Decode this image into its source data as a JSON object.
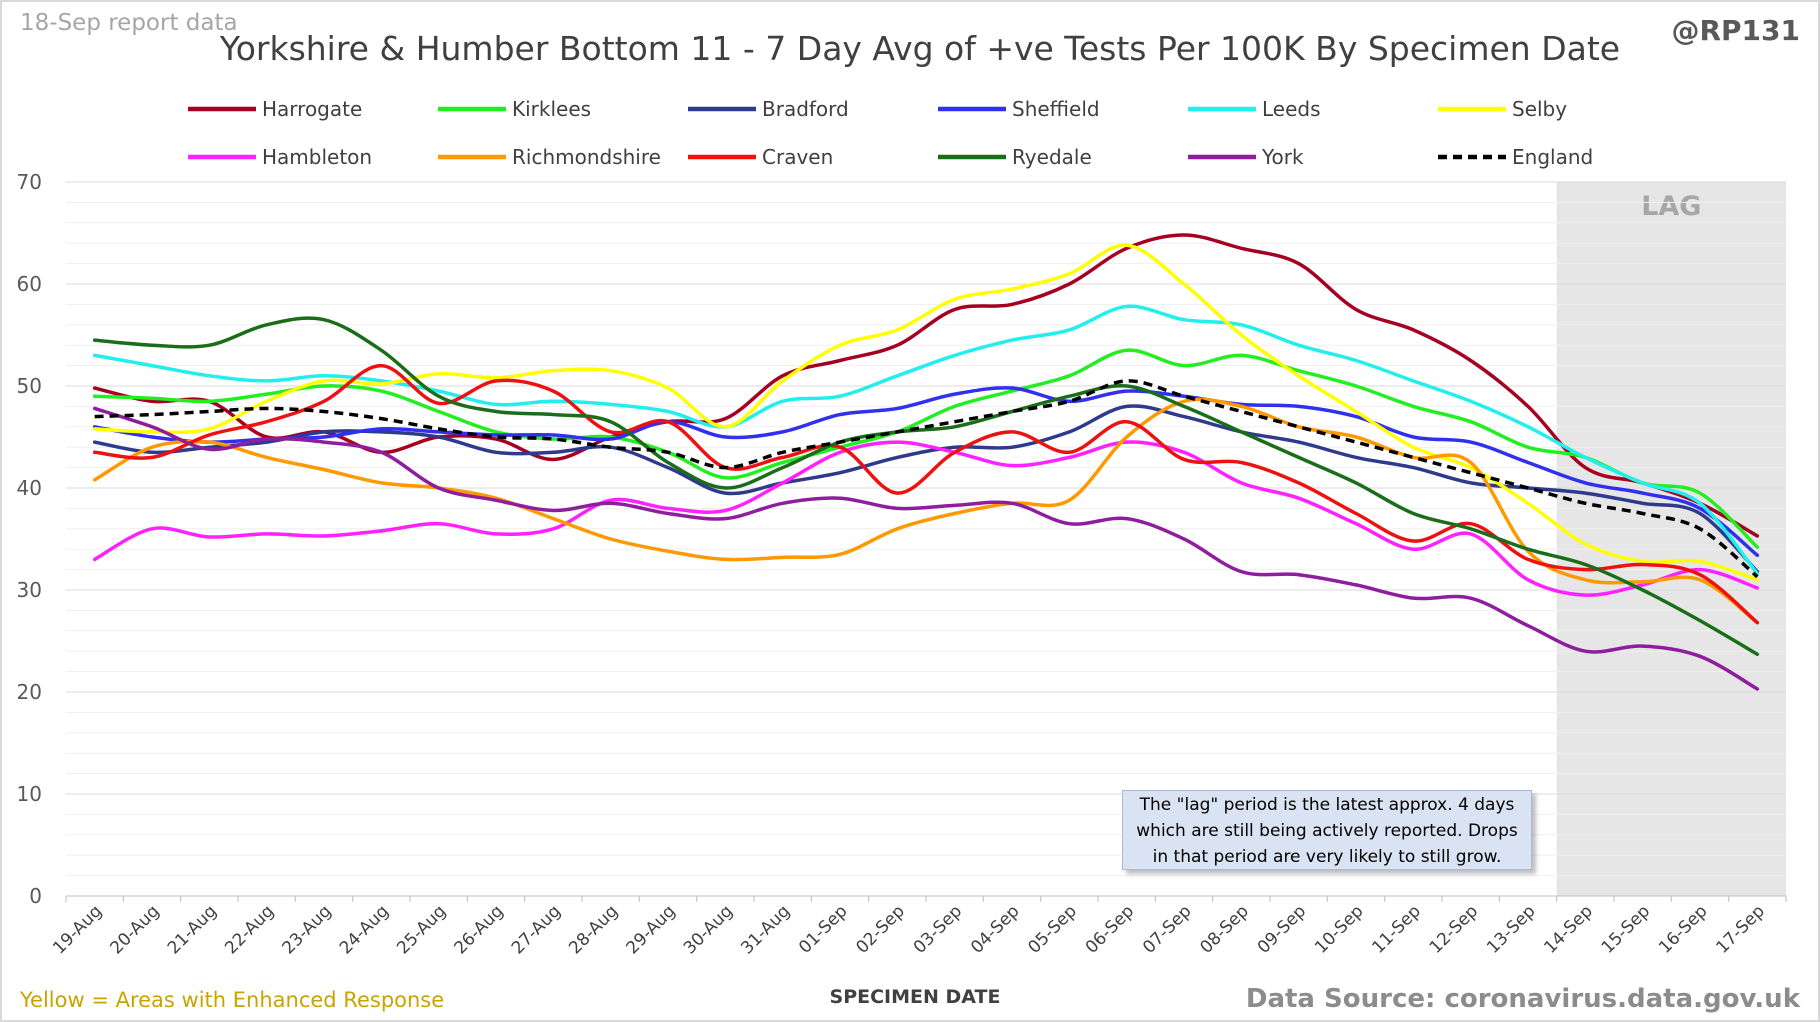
{
  "header": {
    "report_date": "18-Sep report data",
    "handle": "@RP131"
  },
  "footer": {
    "note": "Yellow = Areas with Enhanced Response",
    "source": "Data Source: coronavirus.data.gov.uk"
  },
  "annotation": {
    "lag_label": "LAG",
    "lag_note": "The \"lag\" period is the latest approx. 4 days which are still being actively reported. Drops in that period are very likely to still grow."
  },
  "chart_data": {
    "type": "line",
    "title": "Yorkshire & Humber Bottom 11 - 7 Day Avg of +ve Tests Per 100K By Specimen Date",
    "xlabel": "SPECIMEN DATE",
    "ylabel": "",
    "ylim": [
      0,
      70
    ],
    "yticks": [
      0,
      10,
      20,
      30,
      40,
      50,
      60,
      70
    ],
    "grid": true,
    "legend_position": "top",
    "lag_period": [
      "14-Sep",
      "17-Sep"
    ],
    "categories": [
      "19-Aug",
      "20-Aug",
      "21-Aug",
      "22-Aug",
      "23-Aug",
      "24-Aug",
      "25-Aug",
      "26-Aug",
      "27-Aug",
      "28-Aug",
      "29-Aug",
      "30-Aug",
      "31-Aug",
      "01-Sep",
      "02-Sep",
      "03-Sep",
      "04-Sep",
      "05-Sep",
      "06-Sep",
      "07-Sep",
      "08-Sep",
      "09-Sep",
      "10-Sep",
      "11-Sep",
      "12-Sep",
      "13-Sep",
      "14-Sep",
      "15-Sep",
      "16-Sep",
      "17-Sep"
    ],
    "series": [
      {
        "name": "Harrogate",
        "color": "#a50021",
        "values": [
          49.8,
          48.5,
          48.5,
          45.0,
          45.5,
          43.5,
          45.0,
          44.8,
          42.8,
          45.0,
          46.5,
          46.8,
          51.0,
          52.5,
          54.0,
          57.5,
          58.0,
          60.0,
          63.5,
          64.8,
          63.5,
          62.0,
          57.5,
          55.5,
          52.5,
          48.0,
          42.0,
          40.5,
          38.5,
          35.3
        ]
      },
      {
        "name": "Kirklees",
        "color": "#22ee22",
        "values": [
          49.0,
          48.8,
          48.5,
          49.2,
          50.0,
          49.5,
          47.5,
          45.5,
          44.8,
          45.0,
          43.5,
          41.0,
          42.5,
          44.0,
          45.5,
          48.0,
          49.5,
          51.0,
          53.5,
          52.0,
          53.0,
          51.5,
          50.0,
          48.0,
          46.5,
          44.0,
          43.0,
          40.5,
          39.5,
          34.2
        ]
      },
      {
        "name": "Bradford",
        "color": "#2e3a8c",
        "values": [
          44.5,
          43.5,
          44.0,
          44.5,
          45.5,
          45.5,
          45.0,
          43.5,
          43.5,
          44.0,
          42.0,
          39.5,
          40.5,
          41.5,
          43.0,
          44.0,
          44.0,
          45.5,
          48.0,
          47.0,
          45.5,
          44.5,
          43.0,
          42.0,
          40.5,
          40.0,
          39.5,
          38.5,
          37.5,
          31.8
        ]
      },
      {
        "name": "Sheffield",
        "color": "#3030ee",
        "values": [
          46.0,
          45.0,
          44.5,
          44.8,
          45.0,
          45.8,
          45.5,
          45.2,
          45.2,
          44.8,
          46.5,
          45.0,
          45.5,
          47.2,
          47.8,
          49.2,
          49.8,
          48.5,
          49.5,
          49.0,
          48.2,
          48.0,
          47.0,
          45.0,
          44.5,
          42.5,
          40.5,
          39.5,
          38.0,
          33.4
        ]
      },
      {
        "name": "Leeds",
        "color": "#22eeee",
        "values": [
          53.0,
          52.0,
          51.0,
          50.5,
          51.0,
          50.5,
          49.5,
          48.2,
          48.5,
          48.2,
          47.5,
          46.0,
          48.5,
          49.0,
          51.0,
          53.0,
          54.5,
          55.5,
          57.8,
          56.5,
          56.0,
          54.0,
          52.5,
          50.5,
          48.5,
          46.0,
          43.0,
          40.5,
          38.5,
          31.6
        ]
      },
      {
        "name": "Selby",
        "color": "#ffff00",
        "values": [
          45.8,
          45.5,
          45.8,
          48.5,
          50.5,
          50.2,
          51.2,
          50.8,
          51.5,
          51.5,
          49.8,
          46.0,
          50.5,
          54.0,
          55.5,
          58.5,
          59.5,
          61.0,
          63.8,
          60.0,
          55.0,
          51.0,
          47.5,
          44.0,
          42.0,
          38.5,
          34.5,
          32.8,
          32.8,
          31.0
        ]
      },
      {
        "name": "Hambleton",
        "color": "#ff22ff",
        "values": [
          33.0,
          36.0,
          35.2,
          35.5,
          35.3,
          35.8,
          36.5,
          35.5,
          36.0,
          38.8,
          38.0,
          37.8,
          40.5,
          43.5,
          44.5,
          43.5,
          42.2,
          43.0,
          44.5,
          43.5,
          40.5,
          39.0,
          36.5,
          34.0,
          35.5,
          31.0,
          29.5,
          30.5,
          32.0,
          30.2
        ]
      },
      {
        "name": "Richmondshire",
        "color": "#ff9900",
        "values": [
          40.8,
          44.0,
          44.5,
          43.0,
          41.8,
          40.5,
          40.0,
          39.0,
          37.0,
          35.0,
          33.8,
          33.0,
          33.2,
          33.5,
          36.0,
          37.5,
          38.5,
          38.8,
          45.0,
          48.5,
          48.0,
          46.0,
          45.0,
          43.0,
          42.5,
          33.8,
          31.0,
          30.8,
          31.0,
          26.8
        ]
      },
      {
        "name": "Craven",
        "color": "#ee1111",
        "values": [
          43.5,
          43.0,
          45.2,
          46.5,
          48.5,
          52.0,
          48.3,
          50.5,
          49.5,
          45.5,
          46.5,
          42.0,
          43.0,
          44.0,
          39.5,
          43.5,
          45.5,
          43.5,
          46.5,
          42.8,
          42.5,
          40.5,
          37.5,
          34.8,
          36.5,
          33.0,
          32.0,
          32.5,
          31.5,
          26.8
        ]
      },
      {
        "name": "Ryedale",
        "color": "#1a6e1a",
        "values": [
          54.5,
          54.0,
          54.0,
          56.0,
          56.5,
          53.5,
          49.0,
          47.5,
          47.2,
          46.5,
          42.5,
          40.0,
          42.0,
          44.5,
          45.5,
          46.0,
          47.5,
          49.0,
          50.0,
          48.0,
          45.5,
          43.0,
          40.5,
          37.5,
          36.0,
          34.0,
          32.5,
          30.0,
          27.0,
          23.7
        ]
      },
      {
        "name": "York",
        "color": "#8e1e9e",
        "values": [
          47.8,
          46.0,
          43.8,
          44.8,
          44.5,
          43.5,
          40.0,
          38.8,
          37.8,
          38.5,
          37.5,
          37.0,
          38.5,
          39.0,
          38.0,
          38.3,
          38.5,
          36.5,
          37.0,
          35.0,
          31.8,
          31.5,
          30.5,
          29.2,
          29.2,
          26.5,
          24.0,
          24.5,
          23.5,
          20.3
        ]
      },
      {
        "name": "England",
        "color": "#000000",
        "dashed": true,
        "values": [
          47.0,
          47.2,
          47.5,
          47.8,
          47.5,
          46.8,
          45.8,
          45.0,
          44.8,
          44.0,
          43.5,
          42.0,
          43.5,
          44.5,
          45.5,
          46.5,
          47.5,
          48.5,
          50.5,
          49.0,
          47.5,
          46.0,
          44.5,
          43.0,
          41.5,
          40.0,
          38.5,
          37.5,
          36.0,
          31.3
        ]
      }
    ]
  }
}
